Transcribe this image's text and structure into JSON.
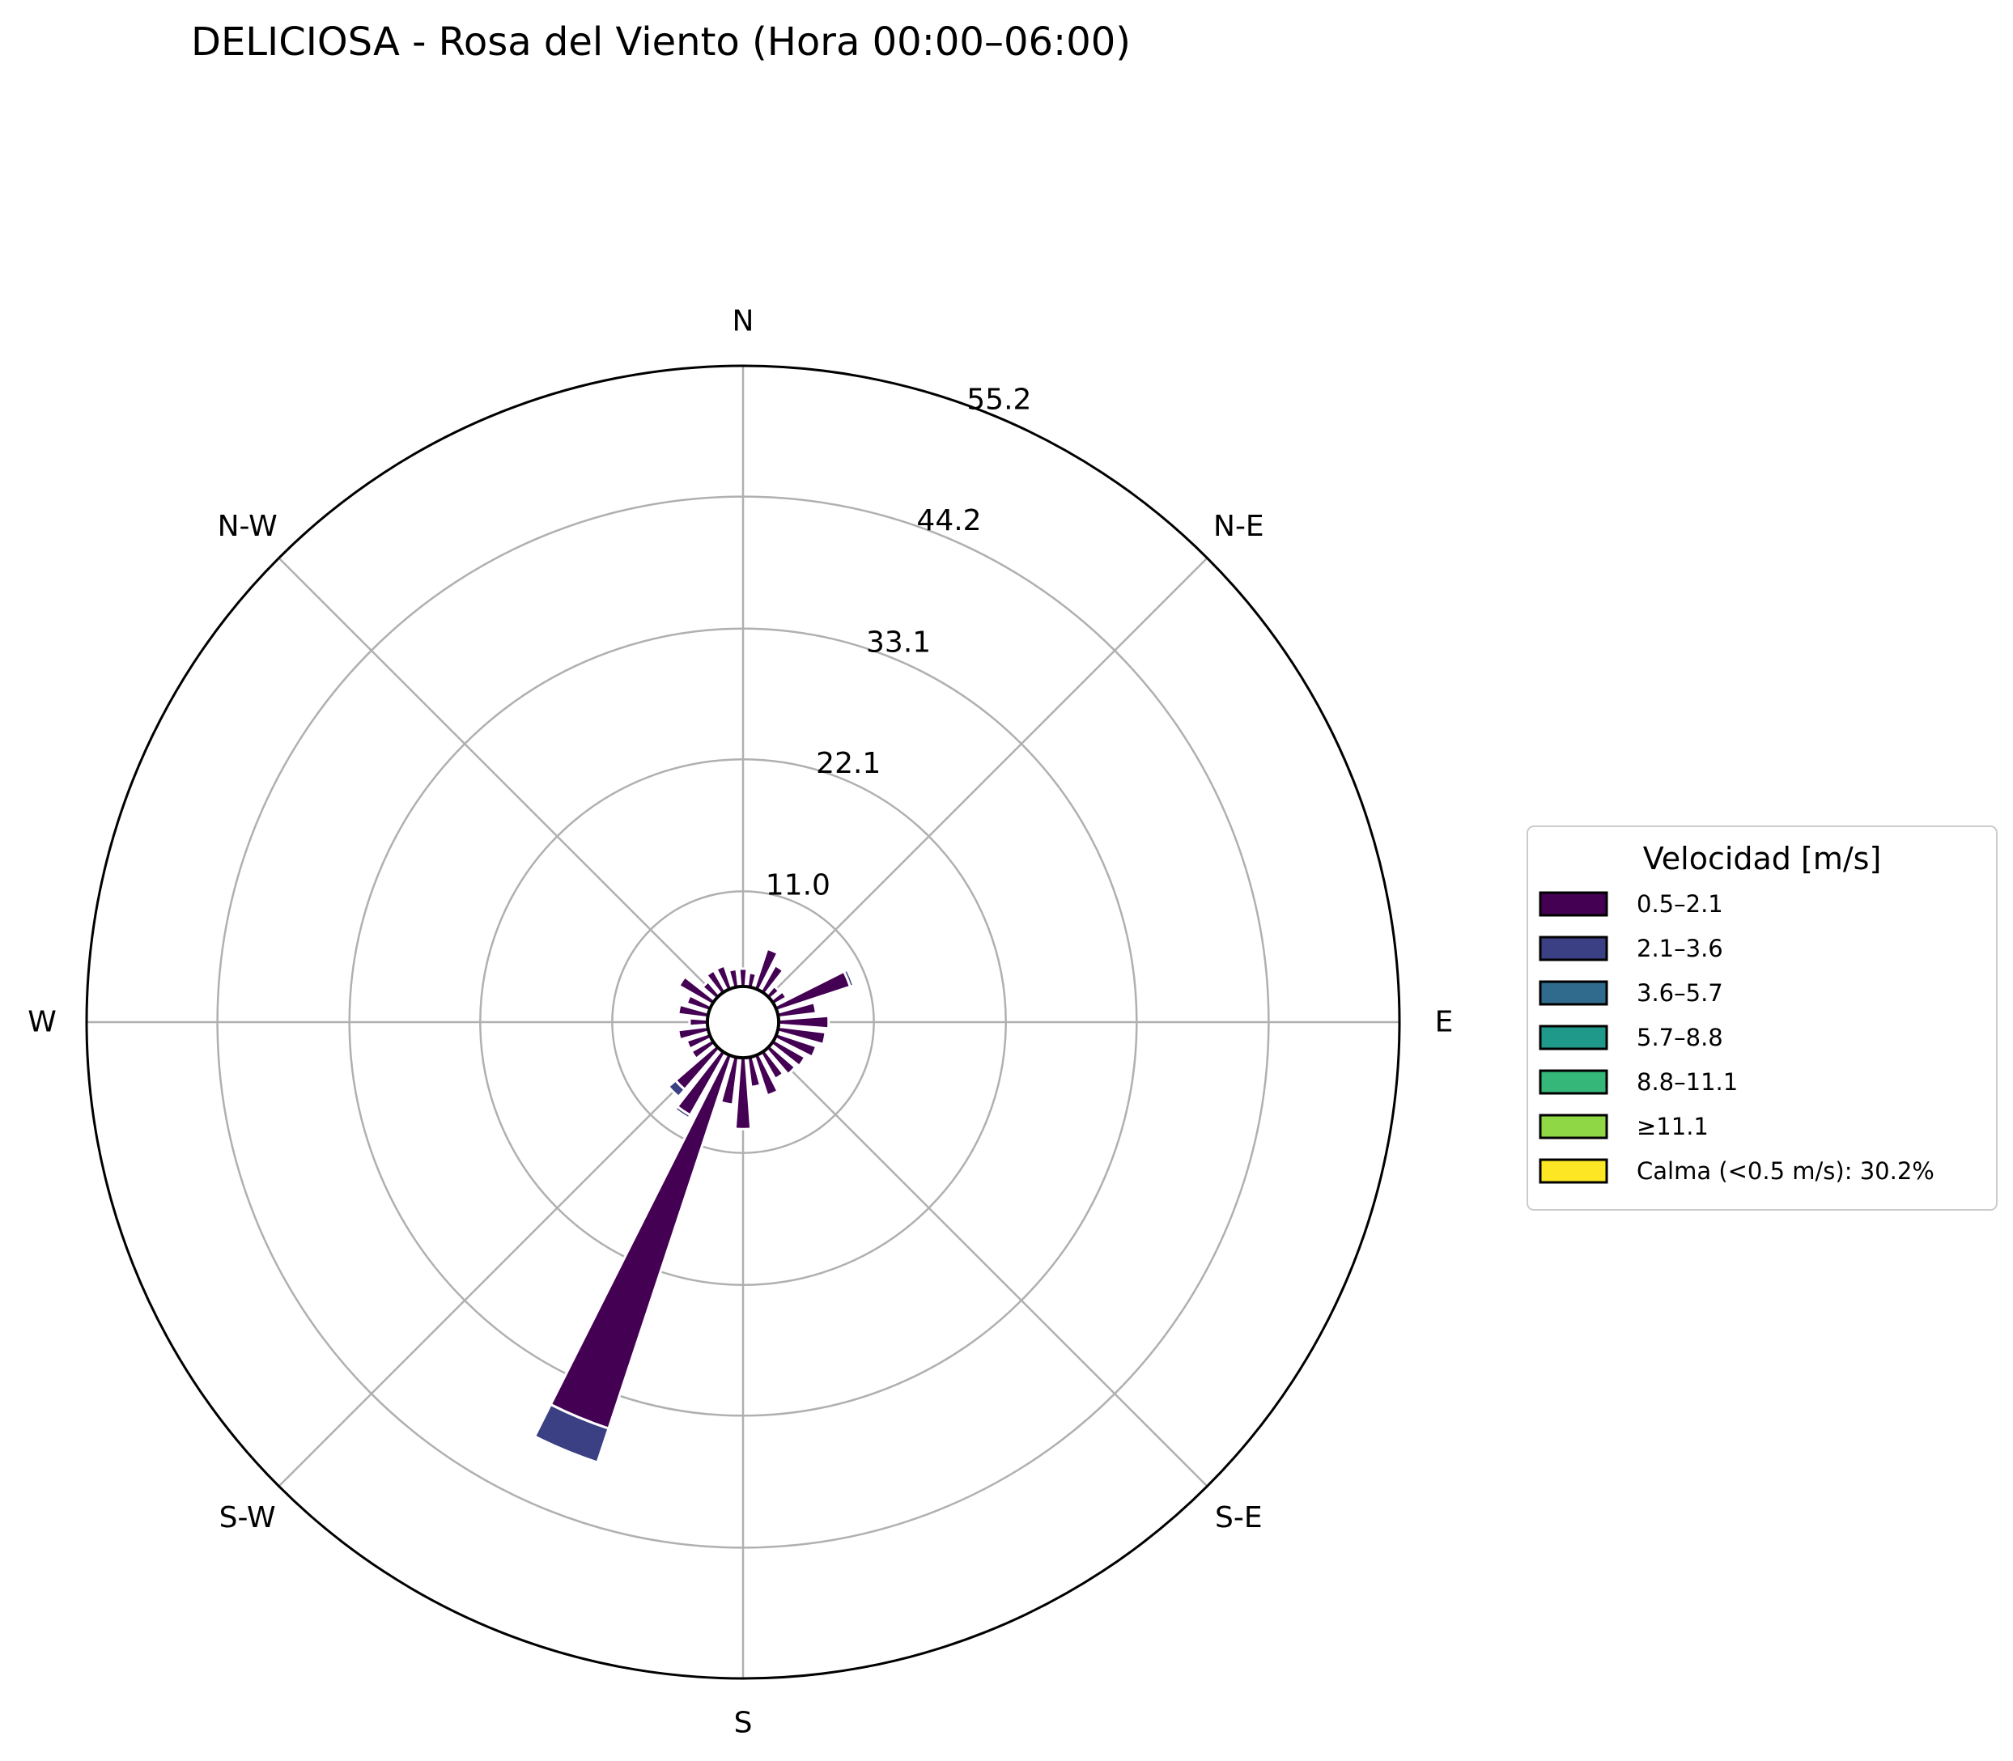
{
  "chart_data": {
    "type": "windrose",
    "title": "DELICIOSA - Rosa del Viento (Hora 00:00–06:00)",
    "directions": [
      "N",
      "N-E",
      "E",
      "S-E",
      "S",
      "S-W",
      "W",
      "N-W"
    ],
    "radial_ticks": [
      "11.0",
      "22.1",
      "33.1",
      "44.2",
      "55.2"
    ],
    "radial_tick_values": [
      11.0,
      22.1,
      33.1,
      44.2,
      55.2
    ],
    "rmax": 55.2,
    "calm_offset": 3.0,
    "grid": true,
    "legend": {
      "title": "Velocidad [m/s]",
      "placement": "right",
      "entries": [
        {
          "label": "0.5–2.1",
          "color": "#440154"
        },
        {
          "label": "2.1–3.6",
          "color": "#3b3f83"
        },
        {
          "label": "3.6–5.7",
          "color": "#306b8e"
        },
        {
          "label": "5.7–8.8",
          "color": "#1f9a8a"
        },
        {
          "label": "8.8–11.1",
          "color": "#35b779"
        },
        {
          "label": "≥11.1",
          "color": "#8fd744"
        },
        {
          "label": "Calma (<0.5 m/s): 30.2%",
          "color": "#fde725"
        }
      ]
    },
    "sector_directions_deg": [
      0,
      11.25,
      22.5,
      33.75,
      45,
      56.25,
      67.5,
      78.75,
      90,
      101.25,
      112.5,
      123.75,
      135,
      146.25,
      157.5,
      168.75,
      180,
      191.25,
      202.5,
      213.75,
      225,
      236.25,
      247.5,
      258.75,
      270,
      281.25,
      292.5,
      303.75,
      315,
      326.25,
      337.5,
      348.75
    ],
    "series": [
      {
        "name": "0.5–2.1",
        "values": [
          1.5,
          1.2,
          3.5,
          2.5,
          1.0,
          1.2,
          6.5,
          3.2,
          4.2,
          4.0,
          3.5,
          3.0,
          2.8,
          2.5,
          3.5,
          2.5,
          6.0,
          4.0,
          33.0,
          6.0,
          4.5,
          2.0,
          2.0,
          2.5,
          1.5,
          2.5,
          2.0,
          3.2,
          1.5,
          2.0,
          2.0,
          1.5
        ]
      },
      {
        "name": "2.1–3.6",
        "values": [
          0,
          0,
          0,
          0,
          0,
          0,
          0.3,
          0,
          0,
          0,
          0,
          0,
          0,
          0,
          0,
          0,
          0,
          0,
          3.0,
          0.3,
          0.8,
          0,
          0,
          0,
          0,
          0,
          0,
          0,
          0,
          0,
          0,
          0
        ]
      }
    ]
  }
}
